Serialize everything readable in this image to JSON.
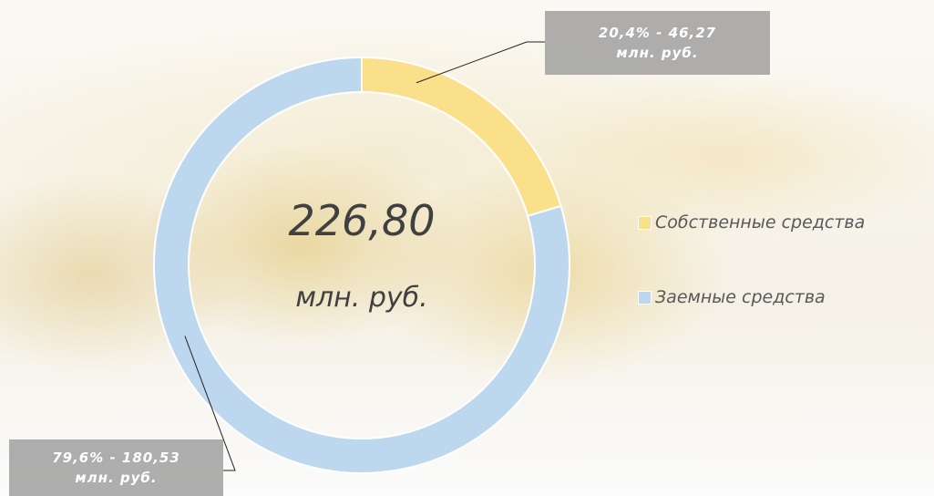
{
  "chart_data": {
    "type": "pie",
    "donut": true,
    "center_value": "226,80",
    "center_label": "млн. руб.",
    "series": [
      {
        "name": "Собственные средства",
        "color": "#fbe08c",
        "values": [
          20.4
        ],
        "value_labels": [
          "20,4% - 46,27 млн. руб."
        ]
      },
      {
        "name": "Заемные средства",
        "color": "#bdd7ee",
        "values": [
          79.6
        ],
        "value_labels": [
          "79,6% - 180,53 млн. руб."
        ]
      }
    ],
    "legend": "right"
  }
}
